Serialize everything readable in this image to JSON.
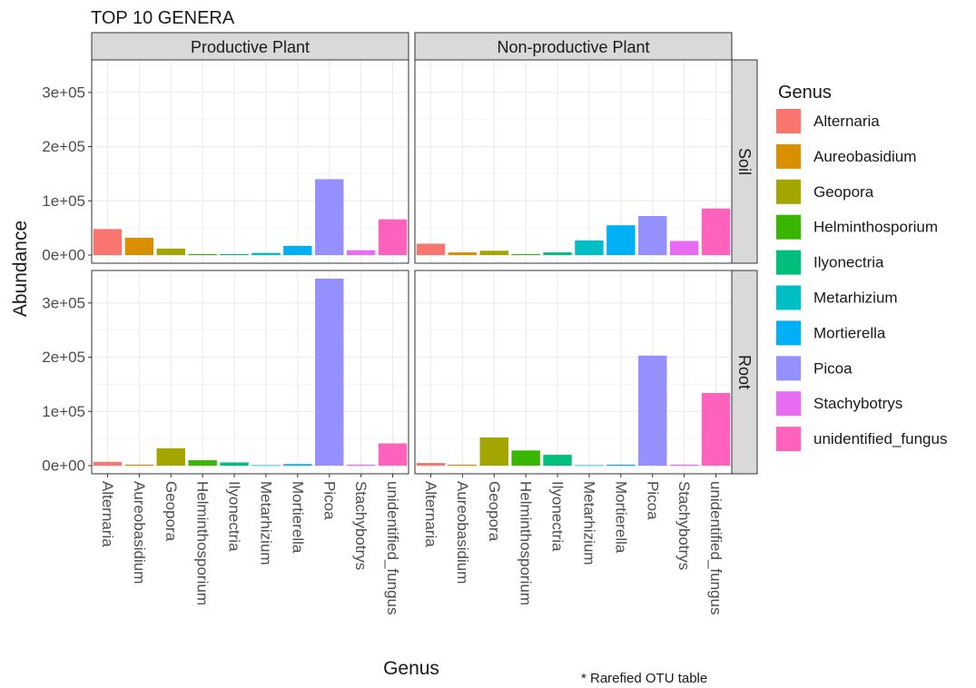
{
  "chart_data": {
    "type": "bar",
    "title": "TOP 10 GENERA",
    "xlabel": "Genus",
    "ylabel": "Abundance",
    "ylim": [
      -15000,
      360000
    ],
    "yticks": [
      0,
      100000,
      200000,
      300000
    ],
    "ytick_labels": [
      "0e+00",
      "1e+05",
      "2e+05",
      "3e+05"
    ],
    "grid": true,
    "legend_position": "right",
    "legend_title": "Genus",
    "columns": [
      "Productive Plant",
      "Non-productive Plant"
    ],
    "rows": [
      "Soil",
      "Root"
    ],
    "categories": [
      "Alternaria",
      "Aureobasidium",
      "Geopora",
      "Helminthosporium",
      "Ilyonectria",
      "Metarhizium",
      "Mortierella",
      "Picoa",
      "Stachybotrys",
      "unidentified_fungus"
    ],
    "colors": [
      "#F8766D",
      "#D89000",
      "#A3A500",
      "#39B600",
      "#00BF7D",
      "#00BFC4",
      "#00B0F6",
      "#9590FF",
      "#E76BF3",
      "#FF62BC"
    ],
    "panels": [
      {
        "column": "Productive Plant",
        "row": "Soil",
        "values": [
          48000,
          32000,
          12000,
          2000,
          2000,
          4000,
          17000,
          140000,
          9000,
          66000
        ]
      },
      {
        "column": "Non-productive Plant",
        "row": "Soil",
        "values": [
          21000,
          5000,
          8000,
          2000,
          5000,
          27000,
          55000,
          72000,
          26000,
          86000
        ]
      },
      {
        "column": "Productive Plant",
        "row": "Root",
        "values": [
          7000,
          2000,
          32000,
          10000,
          6000,
          1000,
          3000,
          345000,
          2000,
          41000
        ]
      },
      {
        "column": "Non-productive Plant",
        "row": "Root",
        "values": [
          5000,
          2000,
          52000,
          28000,
          20000,
          1000,
          2000,
          203000,
          2000,
          134000
        ]
      }
    ]
  },
  "annotation": "* Rarefied OTU table"
}
